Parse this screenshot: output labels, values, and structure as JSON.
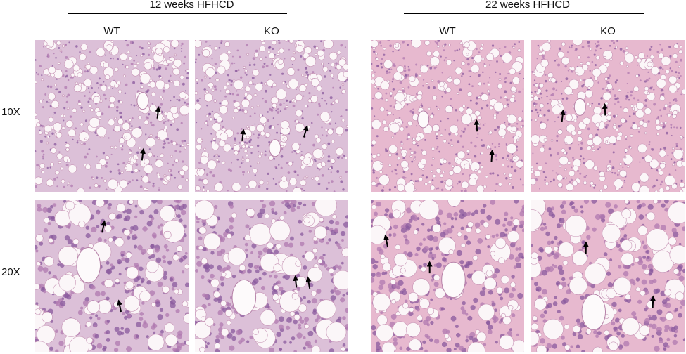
{
  "groups": [
    {
      "title": "12 weeks HFHCD",
      "columns": [
        "WT",
        "KO"
      ]
    },
    {
      "title": "22 weeks HFHCD",
      "columns": [
        "WT",
        "KO"
      ]
    }
  ],
  "rows": [
    "10X",
    "20X"
  ]
}
